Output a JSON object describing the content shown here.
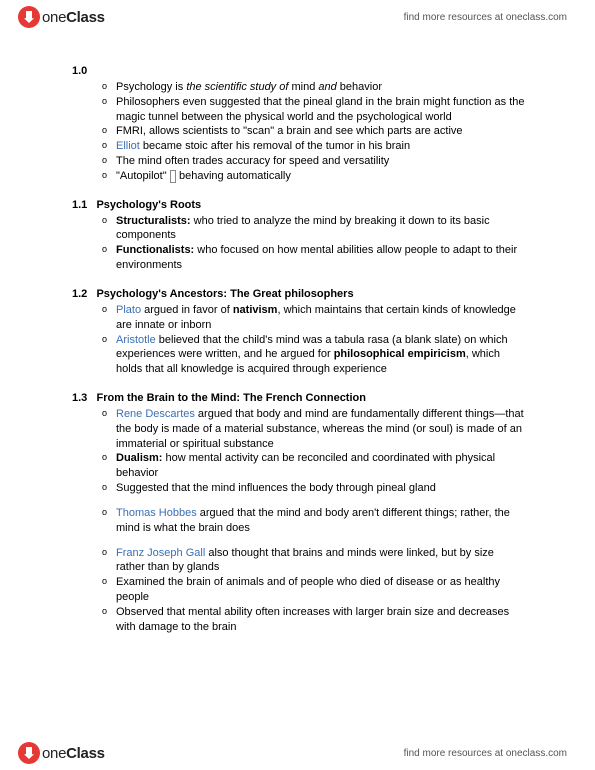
{
  "branding": {
    "logo_prefix": "one",
    "logo_suffix": "Class",
    "tagline": "find more resources at oneclass.com"
  },
  "sections": [
    {
      "num": "1.0",
      "title": "",
      "items": [
        {
          "html": "Psychology is <span class='italic'>the scientific study of</span> mind <span class='italic'>and</span> behavior"
        },
        {
          "text": "Philosophers even suggested that the pineal gland in the brain might function as the magic tunnel between the physical world and the psychological world"
        },
        {
          "text": "FMRI, allows scientists to \"scan\" a brain and see which parts are active"
        },
        {
          "html": "<span class='name'>Elliot</span> became stoic after his removal of the tumor in his brain"
        },
        {
          "text": "The mind often trades accuracy for speed and versatility"
        },
        {
          "html": "\"Autopilot\" <span class='arrow-box'>&nbsp;</span> behaving automatically"
        }
      ]
    },
    {
      "num": "1.1",
      "title": "Psychology's Roots",
      "items": [
        {
          "html": "<span class='b'>Structuralists:</span> who tried to analyze the mind by breaking it down to its basic components"
        },
        {
          "html": "<span class='b'>Functionalists:</span> who focused on how mental abilities allow people to adapt to their environments"
        }
      ]
    },
    {
      "num": "1.2",
      "title": "Psychology's Ancestors: The Great philosophers",
      "items": [
        {
          "html": "<span class='name'>Plato</span> argued in favor of <span class='b'>nativism</span>, which maintains that certain kinds of knowledge are innate or inborn"
        },
        {
          "html": "<span class='name'>Aristotle</span> believed that the child's mind was a tabula rasa (a blank slate) on which experiences were written, and he argued for <span class='b'>philosophical empiricism</span>, which holds that all knowledge is acquired through experience"
        }
      ]
    },
    {
      "num": "1.3",
      "title": "From the Brain to the Mind: The French Connection",
      "items": [
        {
          "html": "<span class='name'>Rene Descartes</span> argued that body and mind are fundamentally different things—that the body is made of a material substance, whereas the mind (or soul) is made of an immaterial or spiritual substance"
        },
        {
          "html": "<span class='b'>Dualism:</span> how mental activity can be reconciled and coordinated with physical behavior"
        },
        {
          "text": "Suggested that the mind influences the body through pineal gland",
          "gap_after": true
        },
        {
          "html": "<span class='name'>Thomas Hobbes</span> argued that the mind and body aren't different things; rather, the mind is what the brain does",
          "gap_after": true
        },
        {
          "html": "<span class='name'>Franz Joseph Gall</span> also thought that brains and minds were linked, but by size rather than by glands"
        },
        {
          "text": "Examined the brain of animals and of people who died of disease or as healthy people"
        },
        {
          "text": "Observed that mental ability often increases with larger brain size and decreases with damage to the brain"
        }
      ]
    }
  ]
}
